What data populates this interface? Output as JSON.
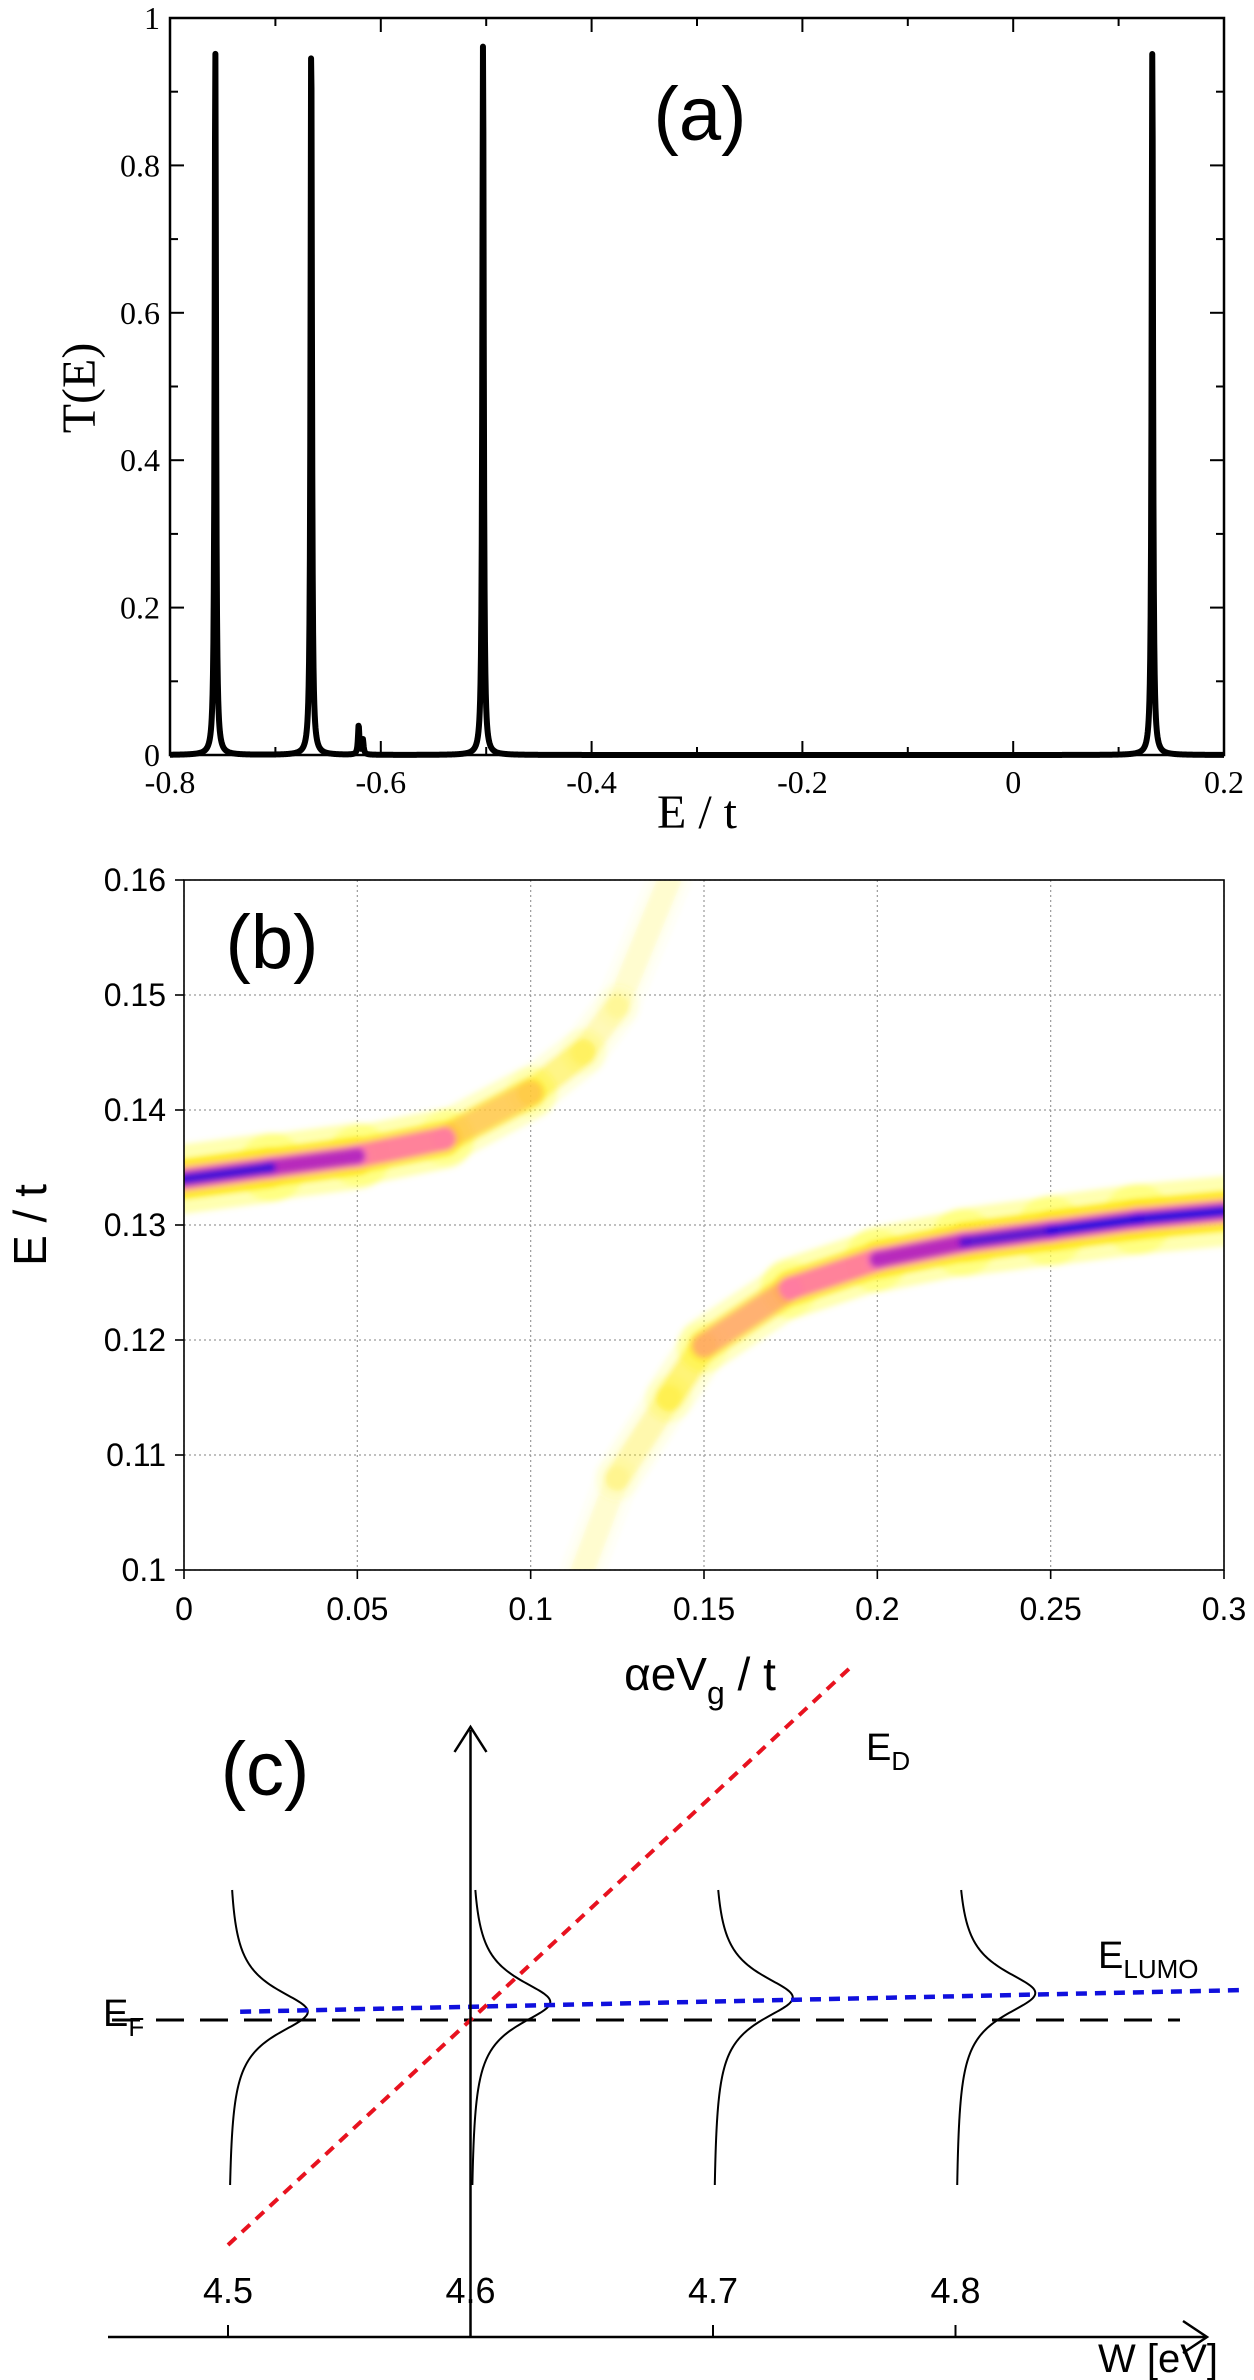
{
  "chart_data": [
    {
      "type": "line",
      "panel_label": "(a)",
      "xlabel": "E / t",
      "ylabel": "T(E)",
      "xlim": [
        -0.8,
        0.2
      ],
      "ylim": [
        0,
        1
      ],
      "x_ticks": [
        -0.8,
        -0.6,
        -0.4,
        -0.2,
        0,
        0.2
      ],
      "x_tick_labels": [
        "-0.8",
        "-0.6",
        "-0.4",
        "-0.2",
        "0",
        "0.2"
      ],
      "y_ticks": [
        0,
        0.2,
        0.4,
        0.6,
        0.8,
        1
      ],
      "y_tick_labels": [
        "0",
        "0.2",
        "0.4",
        "0.6",
        "0.8",
        "1"
      ],
      "grid": false,
      "series": [
        {
          "name": "T(E)",
          "color": "#000000",
          "peaks": [
            {
              "x": -0.757,
              "y": 0.96
            },
            {
              "x": -0.666,
              "y": 0.98
            },
            {
              "x": -0.621,
              "y": 0.04
            },
            {
              "x": -0.617,
              "y": 0.02
            },
            {
              "x": -0.503,
              "y": 0.97
            },
            {
              "x": 0.132,
              "y": 0.96
            }
          ]
        }
      ]
    },
    {
      "type": "heatmap",
      "panel_label": "(b)",
      "xlabel_main": "αeV",
      "xlabel_sub": "g",
      "xlabel_tail": " / t",
      "ylabel": "E / t",
      "xlim": [
        0,
        0.3
      ],
      "ylim": [
        0.1,
        0.16
      ],
      "x_ticks": [
        0,
        0.05,
        0.1,
        0.15,
        0.2,
        0.25,
        0.3
      ],
      "x_tick_labels": [
        "0",
        "0.05",
        "0.1",
        "0.15",
        "0.2",
        "0.25",
        "0.3"
      ],
      "y_ticks": [
        0.1,
        0.11,
        0.12,
        0.13,
        0.14,
        0.15,
        0.16
      ],
      "y_tick_labels": [
        "0.1",
        "0.11",
        "0.12",
        "0.13",
        "0.14",
        "0.15",
        "0.16"
      ],
      "grid": true,
      "colormap": [
        "#ffffff",
        "#ffff4d",
        "#ffe600",
        "#ff77aa",
        "#b020c0",
        "#2010e0"
      ],
      "branches": [
        {
          "name": "upper-left branch",
          "points": [
            [
              0,
              0.134
            ],
            [
              0.025,
              0.135
            ],
            [
              0.05,
              0.136
            ],
            [
              0.075,
              0.1375
            ],
            [
              0.1,
              0.1415
            ],
            [
              0.115,
              0.145
            ],
            [
              0.125,
              0.149
            ],
            [
              0.14,
              0.16
            ]
          ],
          "intensity": [
            1.0,
            0.95,
            0.8,
            0.55,
            0.35,
            0.2,
            0.12,
            0.05
          ]
        },
        {
          "name": "lower-right branch",
          "points": [
            [
              0.115,
              0.1
            ],
            [
              0.125,
              0.108
            ],
            [
              0.14,
              0.115
            ],
            [
              0.15,
              0.1195
            ],
            [
              0.175,
              0.1245
            ],
            [
              0.2,
              0.127
            ],
            [
              0.225,
              0.1285
            ],
            [
              0.25,
              0.1295
            ],
            [
              0.275,
              0.1305
            ],
            [
              0.3,
              0.1312
            ]
          ],
          "intensity": [
            0.05,
            0.12,
            0.25,
            0.38,
            0.6,
            0.78,
            0.9,
            1.0,
            1.0,
            1.0
          ]
        }
      ]
    },
    {
      "type": "diagram",
      "panel_label": "(c)",
      "xlabel": "W [eV]",
      "x_ticks": [
        4.5,
        4.6,
        4.7,
        4.8
      ],
      "x_tick_labels": [
        "4.5",
        "4.6",
        "4.7",
        "4.8"
      ],
      "y_axis_at": 4.6,
      "labels": {
        "fermi": {
          "main": "E",
          "sub": "F"
        },
        "dirac": {
          "main": "E",
          "sub": "D"
        },
        "lumo": {
          "main": "E",
          "sub": "LUMO"
        }
      },
      "fermi_level": 0,
      "dirac_line": {
        "slope_per_eV": 6.0,
        "zero_at": 4.6,
        "color": "#e8121f"
      },
      "lumo_line": {
        "start": [
          4.505,
          0.11
        ],
        "end": [
          4.92,
          0.4
        ],
        "color": "#1010dd"
      },
      "resonances": [
        {
          "w0": 4.5,
          "level": 0.11
        },
        {
          "w0": 4.6,
          "level": 0.24
        },
        {
          "w0": 4.7,
          "level": 0.3
        },
        {
          "w0": 4.8,
          "level": 0.36
        }
      ]
    }
  ]
}
